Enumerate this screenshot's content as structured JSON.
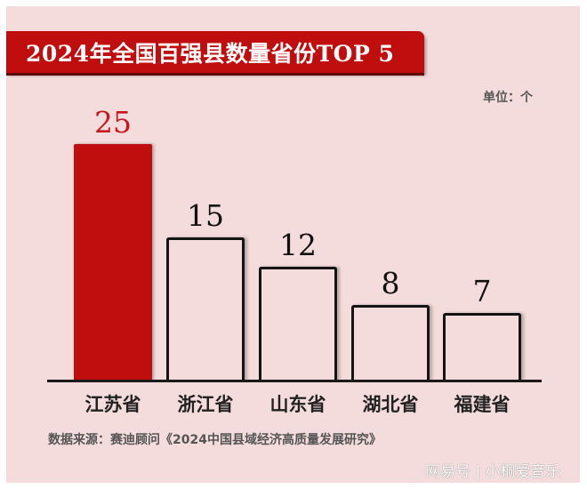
{
  "title": "2024年全国百强县数量省份TOP 5",
  "unit_label": "单位：个",
  "source": "数据来源：赛迪顾问《2024中国县域经济高质量发展研究》",
  "watermark": "网易号 | 小桐爱音乐",
  "colors": {
    "accent": "#c00d0d",
    "highlight_value": "#c8161d",
    "background": "#f5dcdc",
    "bar_outline": "#141414"
  },
  "chart_data": {
    "type": "bar",
    "title": "2024年全国百强县数量省份TOP 5",
    "categories": [
      "江苏省",
      "浙江省",
      "山东省",
      "湖北省",
      "福建省"
    ],
    "values": [
      25,
      15,
      12,
      8,
      7
    ],
    "value_labels": [
      "25",
      "15",
      "12",
      "8",
      "7"
    ],
    "highlighted_index": 0,
    "xlabel": "",
    "ylabel": "单位：个",
    "grid": false,
    "legend": null
  }
}
